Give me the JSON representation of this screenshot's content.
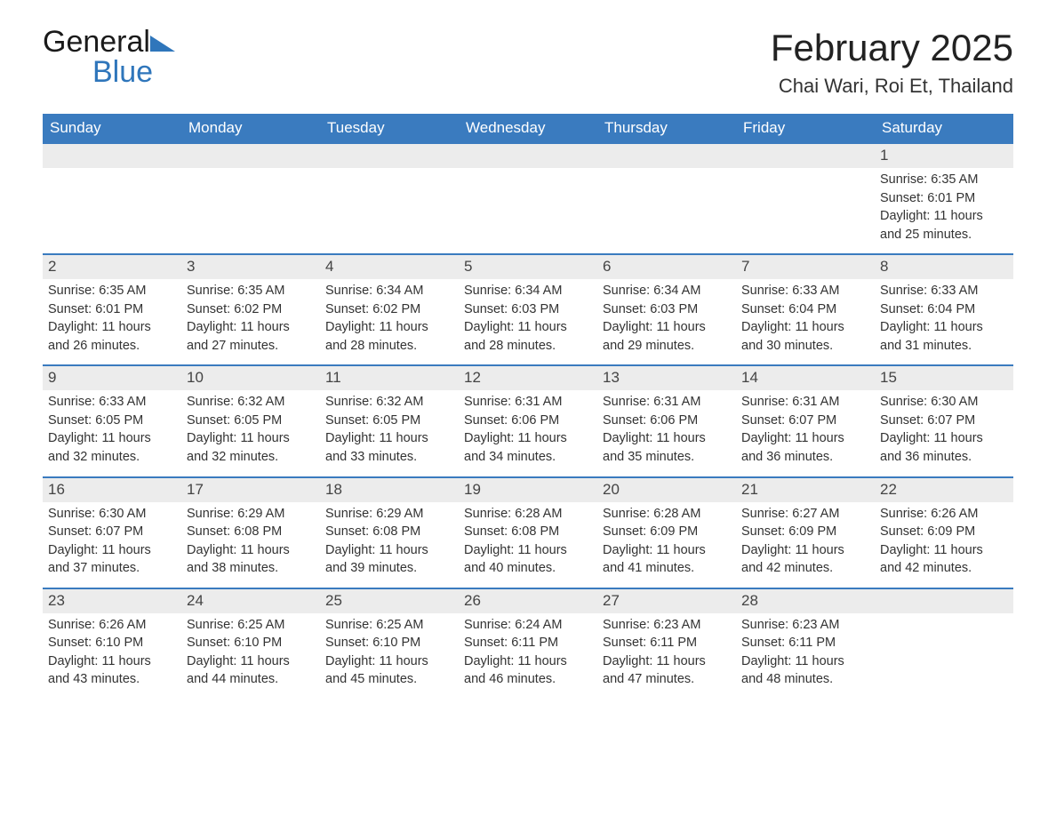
{
  "brand": {
    "name_part1": "General",
    "name_part2": "Blue",
    "color": "#2f76bb"
  },
  "header": {
    "title": "February 2025",
    "location": "Chai Wari, Roi Et, Thailand"
  },
  "colors": {
    "header_bg": "#3a7bbf",
    "header_text": "#ffffff",
    "daynum_bg": "#ececec",
    "row_top_border": "#3a7bbf",
    "text": "#333333",
    "background": "#ffffff"
  },
  "calendar": {
    "type": "table",
    "day_labels": [
      "Sunday",
      "Monday",
      "Tuesday",
      "Wednesday",
      "Thursday",
      "Friday",
      "Saturday"
    ],
    "weeks": [
      [
        null,
        null,
        null,
        null,
        null,
        null,
        {
          "n": 1,
          "sunrise": "Sunrise: 6:35 AM",
          "sunset": "Sunset: 6:01 PM",
          "day1": "Daylight: 11 hours",
          "day2": "and 25 minutes."
        }
      ],
      [
        {
          "n": 2,
          "sunrise": "Sunrise: 6:35 AM",
          "sunset": "Sunset: 6:01 PM",
          "day1": "Daylight: 11 hours",
          "day2": "and 26 minutes."
        },
        {
          "n": 3,
          "sunrise": "Sunrise: 6:35 AM",
          "sunset": "Sunset: 6:02 PM",
          "day1": "Daylight: 11 hours",
          "day2": "and 27 minutes."
        },
        {
          "n": 4,
          "sunrise": "Sunrise: 6:34 AM",
          "sunset": "Sunset: 6:02 PM",
          "day1": "Daylight: 11 hours",
          "day2": "and 28 minutes."
        },
        {
          "n": 5,
          "sunrise": "Sunrise: 6:34 AM",
          "sunset": "Sunset: 6:03 PM",
          "day1": "Daylight: 11 hours",
          "day2": "and 28 minutes."
        },
        {
          "n": 6,
          "sunrise": "Sunrise: 6:34 AM",
          "sunset": "Sunset: 6:03 PM",
          "day1": "Daylight: 11 hours",
          "day2": "and 29 minutes."
        },
        {
          "n": 7,
          "sunrise": "Sunrise: 6:33 AM",
          "sunset": "Sunset: 6:04 PM",
          "day1": "Daylight: 11 hours",
          "day2": "and 30 minutes."
        },
        {
          "n": 8,
          "sunrise": "Sunrise: 6:33 AM",
          "sunset": "Sunset: 6:04 PM",
          "day1": "Daylight: 11 hours",
          "day2": "and 31 minutes."
        }
      ],
      [
        {
          "n": 9,
          "sunrise": "Sunrise: 6:33 AM",
          "sunset": "Sunset: 6:05 PM",
          "day1": "Daylight: 11 hours",
          "day2": "and 32 minutes."
        },
        {
          "n": 10,
          "sunrise": "Sunrise: 6:32 AM",
          "sunset": "Sunset: 6:05 PM",
          "day1": "Daylight: 11 hours",
          "day2": "and 32 minutes."
        },
        {
          "n": 11,
          "sunrise": "Sunrise: 6:32 AM",
          "sunset": "Sunset: 6:05 PM",
          "day1": "Daylight: 11 hours",
          "day2": "and 33 minutes."
        },
        {
          "n": 12,
          "sunrise": "Sunrise: 6:31 AM",
          "sunset": "Sunset: 6:06 PM",
          "day1": "Daylight: 11 hours",
          "day2": "and 34 minutes."
        },
        {
          "n": 13,
          "sunrise": "Sunrise: 6:31 AM",
          "sunset": "Sunset: 6:06 PM",
          "day1": "Daylight: 11 hours",
          "day2": "and 35 minutes."
        },
        {
          "n": 14,
          "sunrise": "Sunrise: 6:31 AM",
          "sunset": "Sunset: 6:07 PM",
          "day1": "Daylight: 11 hours",
          "day2": "and 36 minutes."
        },
        {
          "n": 15,
          "sunrise": "Sunrise: 6:30 AM",
          "sunset": "Sunset: 6:07 PM",
          "day1": "Daylight: 11 hours",
          "day2": "and 36 minutes."
        }
      ],
      [
        {
          "n": 16,
          "sunrise": "Sunrise: 6:30 AM",
          "sunset": "Sunset: 6:07 PM",
          "day1": "Daylight: 11 hours",
          "day2": "and 37 minutes."
        },
        {
          "n": 17,
          "sunrise": "Sunrise: 6:29 AM",
          "sunset": "Sunset: 6:08 PM",
          "day1": "Daylight: 11 hours",
          "day2": "and 38 minutes."
        },
        {
          "n": 18,
          "sunrise": "Sunrise: 6:29 AM",
          "sunset": "Sunset: 6:08 PM",
          "day1": "Daylight: 11 hours",
          "day2": "and 39 minutes."
        },
        {
          "n": 19,
          "sunrise": "Sunrise: 6:28 AM",
          "sunset": "Sunset: 6:08 PM",
          "day1": "Daylight: 11 hours",
          "day2": "and 40 minutes."
        },
        {
          "n": 20,
          "sunrise": "Sunrise: 6:28 AM",
          "sunset": "Sunset: 6:09 PM",
          "day1": "Daylight: 11 hours",
          "day2": "and 41 minutes."
        },
        {
          "n": 21,
          "sunrise": "Sunrise: 6:27 AM",
          "sunset": "Sunset: 6:09 PM",
          "day1": "Daylight: 11 hours",
          "day2": "and 42 minutes."
        },
        {
          "n": 22,
          "sunrise": "Sunrise: 6:26 AM",
          "sunset": "Sunset: 6:09 PM",
          "day1": "Daylight: 11 hours",
          "day2": "and 42 minutes."
        }
      ],
      [
        {
          "n": 23,
          "sunrise": "Sunrise: 6:26 AM",
          "sunset": "Sunset: 6:10 PM",
          "day1": "Daylight: 11 hours",
          "day2": "and 43 minutes."
        },
        {
          "n": 24,
          "sunrise": "Sunrise: 6:25 AM",
          "sunset": "Sunset: 6:10 PM",
          "day1": "Daylight: 11 hours",
          "day2": "and 44 minutes."
        },
        {
          "n": 25,
          "sunrise": "Sunrise: 6:25 AM",
          "sunset": "Sunset: 6:10 PM",
          "day1": "Daylight: 11 hours",
          "day2": "and 45 minutes."
        },
        {
          "n": 26,
          "sunrise": "Sunrise: 6:24 AM",
          "sunset": "Sunset: 6:11 PM",
          "day1": "Daylight: 11 hours",
          "day2": "and 46 minutes."
        },
        {
          "n": 27,
          "sunrise": "Sunrise: 6:23 AM",
          "sunset": "Sunset: 6:11 PM",
          "day1": "Daylight: 11 hours",
          "day2": "and 47 minutes."
        },
        {
          "n": 28,
          "sunrise": "Sunrise: 6:23 AM",
          "sunset": "Sunset: 6:11 PM",
          "day1": "Daylight: 11 hours",
          "day2": "and 48 minutes."
        },
        null
      ]
    ]
  }
}
